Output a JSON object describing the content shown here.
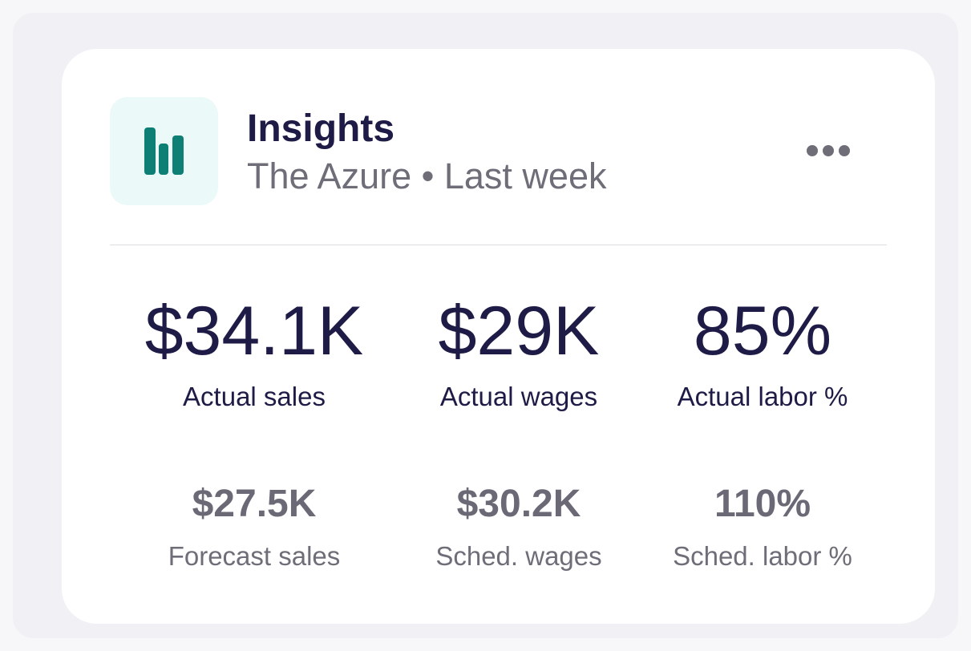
{
  "header": {
    "title": "Insights",
    "subtitle": "The Azure • Last week",
    "icon": "bar-chart-icon",
    "more_icon": "more-horizontal-icon",
    "accent_color": "#0d7f74",
    "icon_background": "#ecf9f9"
  },
  "primary_metrics": [
    {
      "value": "$34.1K",
      "label": "Actual sales"
    },
    {
      "value": "$29K",
      "label": "Actual wages"
    },
    {
      "value": "85%",
      "label": "Actual labor %"
    }
  ],
  "secondary_metrics": [
    {
      "value": "$27.5K",
      "label": "Forecast sales"
    },
    {
      "value": "$30.2K",
      "label": "Sched. wages"
    },
    {
      "value": "110%",
      "label": "Sched. labor %"
    }
  ]
}
